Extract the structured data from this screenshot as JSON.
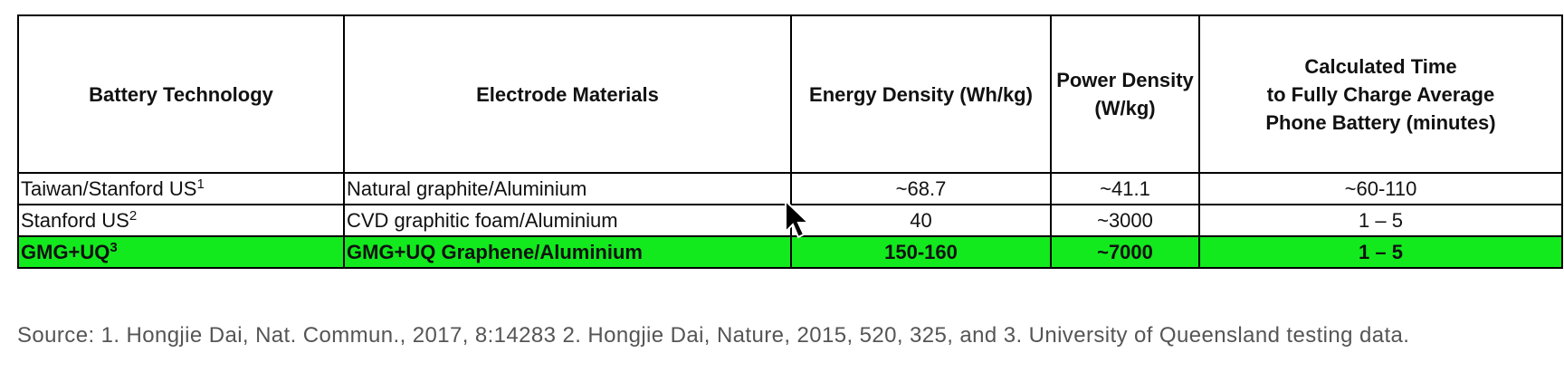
{
  "table": {
    "header": [
      [
        "Battery Technology"
      ],
      [
        "Electrode Materials"
      ],
      [
        "Energy Density (Wh/kg)"
      ],
      [
        "Power Density",
        "(W/kg)"
      ],
      [
        "Calculated Time",
        "to Fully Charge Average",
        "Phone Battery (minutes)"
      ]
    ],
    "highlight_color": "#12ea1d",
    "rows": [
      {
        "highlight": false,
        "cells": [
          {
            "name": "Taiwan/Stanford US",
            "ref": "1"
          },
          "Natural graphite/Aluminium",
          "~68.7",
          "~41.1",
          "~60-110"
        ]
      },
      {
        "highlight": false,
        "cells": [
          {
            "name": "Stanford US",
            "ref": "2"
          },
          "CVD graphitic foam/Aluminium",
          "40",
          "~3000",
          "1 – 5"
        ]
      },
      {
        "highlight": true,
        "cells": [
          {
            "name": "GMG+UQ",
            "ref": "3"
          },
          "GMG+UQ Graphene/Aluminium",
          "150-160",
          "~7000",
          "1 – 5"
        ]
      }
    ]
  },
  "footer": "Source: 1. Hongjie Dai, Nat. Commun., 2017, 8:14283 2. Hongjie Dai, Nature, 2015, 520, 325, and 3. University of Queensland testing data."
}
